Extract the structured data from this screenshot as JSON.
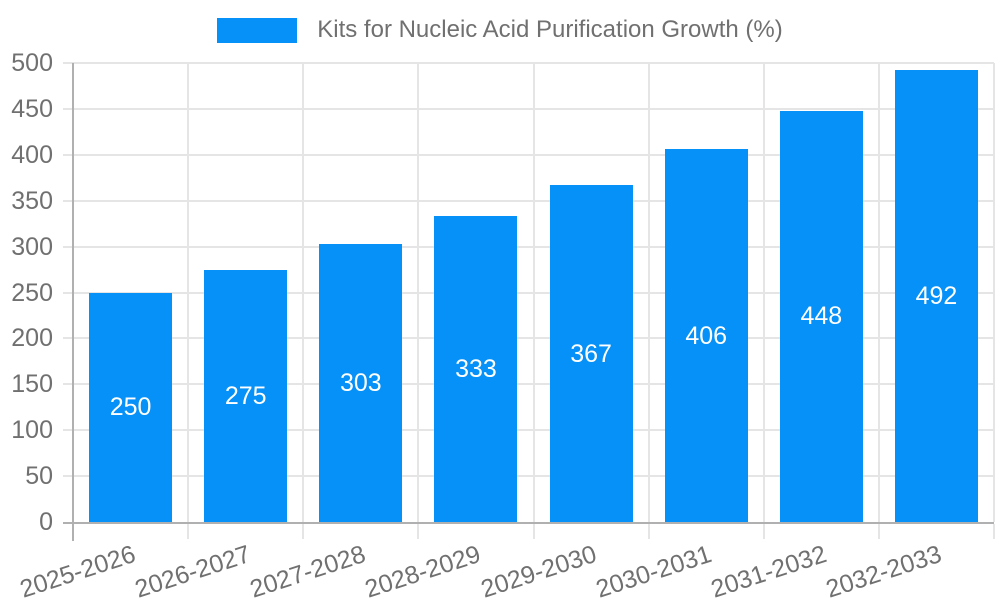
{
  "legend": {
    "label": "Kits for Nucleic Acid Purification Growth (%)"
  },
  "chart_data": {
    "type": "bar",
    "title": "Kits for Nucleic Acid Purification Growth (%)",
    "series_name": "Kits for Nucleic Acid Purification Growth (%)",
    "categories": [
      "2025-2026",
      "2026-2027",
      "2027-2028",
      "2028-2029",
      "2029-2030",
      "2030-2031",
      "2031-2032",
      "2032-2033"
    ],
    "values": [
      250,
      275,
      303,
      333,
      367,
      406,
      448,
      492
    ],
    "data_labels": [
      "250",
      "275",
      "303",
      "333",
      "367",
      "406",
      "448",
      "492"
    ],
    "yticks": [
      0,
      50,
      100,
      150,
      200,
      250,
      300,
      350,
      400,
      450,
      500
    ],
    "ylim": [
      0,
      500
    ],
    "xlabel": "",
    "ylabel": "",
    "grid": true,
    "legend_position": "top",
    "value_label_position": "center-of-bar",
    "colors": {
      "bar": "#0591f8",
      "value_label": "#ffffff",
      "tick_text": "#707070",
      "gridline": "#e5e5e5",
      "axis_line": "#b0b0b0",
      "background": "#ffffff"
    }
  }
}
